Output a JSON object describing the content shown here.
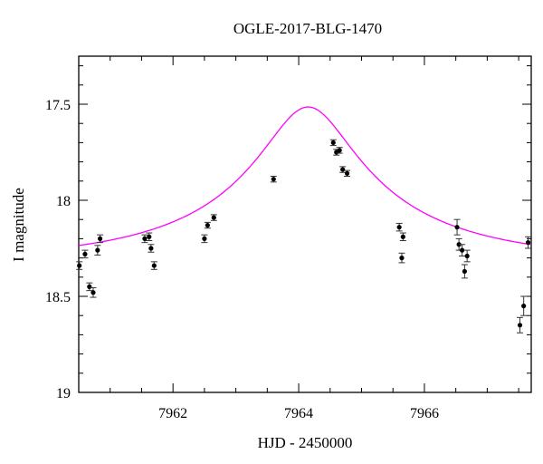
{
  "chart_data": {
    "type": "scatter",
    "title": "OGLE-2017-BLG-1470",
    "xlabel": "HJD - 2450000",
    "ylabel": "I magnitude",
    "xlim": [
      7960.5,
      7967.7
    ],
    "ylim": [
      19.0,
      17.25
    ],
    "y_inverted": true,
    "grid": false,
    "x_major_ticks": [
      7962,
      7964,
      7966
    ],
    "y_major_ticks": [
      17.5,
      18,
      18.5,
      19
    ],
    "x_tick_labels": [
      "7962",
      "7964",
      "7966"
    ],
    "y_tick_labels": [
      "17.5",
      "18",
      "18.5",
      "19"
    ],
    "series": [
      {
        "kind": "points",
        "points": [
          {
            "x": 7960.51,
            "y": 18.34,
            "err": 0.02
          },
          {
            "x": 7960.6,
            "y": 18.28,
            "err": 0.02
          },
          {
            "x": 7960.67,
            "y": 18.45,
            "err": 0.02
          },
          {
            "x": 7960.73,
            "y": 18.48,
            "err": 0.025
          },
          {
            "x": 7960.8,
            "y": 18.26,
            "err": 0.025
          },
          {
            "x": 7960.84,
            "y": 18.2,
            "err": 0.02
          },
          {
            "x": 7961.55,
            "y": 18.2,
            "err": 0.02
          },
          {
            "x": 7961.62,
            "y": 18.19,
            "err": 0.02
          },
          {
            "x": 7961.65,
            "y": 18.25,
            "err": 0.02
          },
          {
            "x": 7961.7,
            "y": 18.34,
            "err": 0.02
          },
          {
            "x": 7962.5,
            "y": 18.2,
            "err": 0.02
          },
          {
            "x": 7962.55,
            "y": 18.13,
            "err": 0.015
          },
          {
            "x": 7962.65,
            "y": 18.09,
            "err": 0.015
          },
          {
            "x": 7963.6,
            "y": 17.89,
            "err": 0.015
          },
          {
            "x": 7964.55,
            "y": 17.7,
            "err": 0.015
          },
          {
            "x": 7964.6,
            "y": 17.75,
            "err": 0.015
          },
          {
            "x": 7964.65,
            "y": 17.74,
            "err": 0.015
          },
          {
            "x": 7964.7,
            "y": 17.84,
            "err": 0.015
          },
          {
            "x": 7964.77,
            "y": 17.86,
            "err": 0.015
          },
          {
            "x": 7965.6,
            "y": 18.14,
            "err": 0.02
          },
          {
            "x": 7965.64,
            "y": 18.3,
            "err": 0.025
          },
          {
            "x": 7965.66,
            "y": 18.19,
            "err": 0.02
          },
          {
            "x": 7966.52,
            "y": 18.14,
            "err": 0.04
          },
          {
            "x": 7966.55,
            "y": 18.23,
            "err": 0.03
          },
          {
            "x": 7966.6,
            "y": 18.26,
            "err": 0.03
          },
          {
            "x": 7966.64,
            "y": 18.37,
            "err": 0.035
          },
          {
            "x": 7966.68,
            "y": 18.29,
            "err": 0.03
          },
          {
            "x": 7967.52,
            "y": 18.65,
            "err": 0.04
          },
          {
            "x": 7967.58,
            "y": 18.55,
            "err": 0.05
          },
          {
            "x": 7967.65,
            "y": 18.22,
            "err": 0.03
          }
        ],
        "color": "#000000"
      },
      {
        "kind": "model_curve",
        "model": "paczynski",
        "t0": 7964.15,
        "u0": 0.2,
        "tE": 3.5,
        "fs": 0.27,
        "I0": 18.32,
        "color": "#ff00ff"
      }
    ]
  }
}
